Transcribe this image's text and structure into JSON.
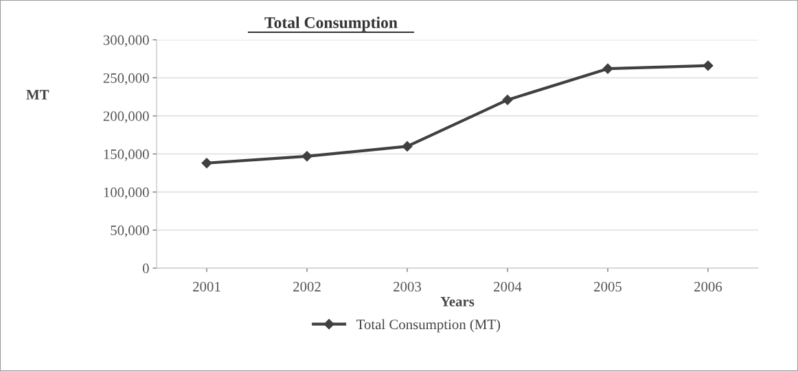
{
  "chart_data": {
    "type": "line",
    "title": "Total Consumption",
    "xlabel": "Years",
    "ylabel": "MT",
    "categories": [
      "2001",
      "2002",
      "2003",
      "2004",
      "2005",
      "2006"
    ],
    "series": [
      {
        "name": "Total Consumption (MT)",
        "color": "#404040",
        "values": [
          138000,
          147000,
          160000,
          221000,
          262000,
          266000
        ]
      }
    ],
    "ylim": [
      0,
      300000
    ],
    "yticks": [
      {
        "value": 0,
        "label": "0"
      },
      {
        "value": 50000,
        "label": "50,000"
      },
      {
        "value": 100000,
        "label": "100,000"
      },
      {
        "value": 150000,
        "label": "150,000"
      },
      {
        "value": 200000,
        "label": "200,000"
      },
      {
        "value": 250000,
        "label": "250,000"
      },
      {
        "value": 300000,
        "label": "300,000"
      }
    ],
    "grid": "y",
    "legend": "bottom",
    "marker": "diamond",
    "line_style": "solid"
  }
}
